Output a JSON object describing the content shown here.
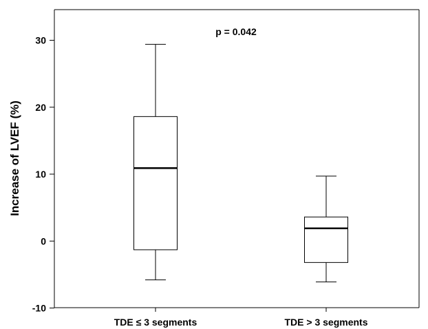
{
  "chart_data": {
    "type": "boxplot",
    "title": "",
    "xlabel": "",
    "ylabel": "Increase of LVEF (%)",
    "ylim": [
      -10,
      30
    ],
    "yticks": [
      -10,
      0,
      10,
      20,
      30
    ],
    "grid": false,
    "legend": "none",
    "categories": [
      "TDE ≤ 3 segments",
      "TDE > 3 segments"
    ],
    "boxes": [
      {
        "category": "TDE ≤ 3 segments",
        "whisker_low": -5.8,
        "q1": -1.3,
        "median": 10.9,
        "q3": 18.6,
        "whisker_high": 29.4
      },
      {
        "category": "TDE > 3 segments",
        "whisker_low": -6.1,
        "q1": -3.2,
        "median": 1.9,
        "q3": 3.6,
        "whisker_high": 9.7
      }
    ],
    "annotations": [
      "p = 0.042"
    ],
    "colors": {
      "stroke": "#000000",
      "box_fill": "#ffffff"
    }
  }
}
